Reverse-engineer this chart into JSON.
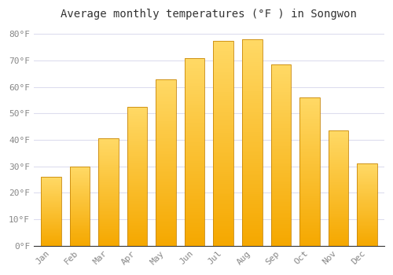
{
  "title": "Average monthly temperatures (°F ) in Songwon",
  "months": [
    "Jan",
    "Feb",
    "Mar",
    "Apr",
    "May",
    "Jun",
    "Jul",
    "Aug",
    "Sep",
    "Oct",
    "Nov",
    "Dec"
  ],
  "values": [
    26,
    30,
    40.5,
    52.5,
    63,
    71,
    77.5,
    78,
    68.5,
    56,
    43.5,
    31
  ],
  "bar_color_bottom": "#F5A800",
  "bar_color_top": "#FFD966",
  "bar_edge_color": "#C8870A",
  "background_color": "#FFFFFF",
  "grid_color": "#DDDDEE",
  "title_color": "#333333",
  "tick_color": "#888888",
  "axis_color": "#333333",
  "ylim": [
    0,
    83
  ],
  "yticks": [
    0,
    10,
    20,
    30,
    40,
    50,
    60,
    70,
    80
  ],
  "ytick_labels": [
    "0°F",
    "10°F",
    "20°F",
    "30°F",
    "40°F",
    "50°F",
    "60°F",
    "70°F",
    "80°F"
  ],
  "title_fontsize": 10,
  "tick_fontsize": 8,
  "bar_width": 0.7,
  "font_family": "monospace"
}
